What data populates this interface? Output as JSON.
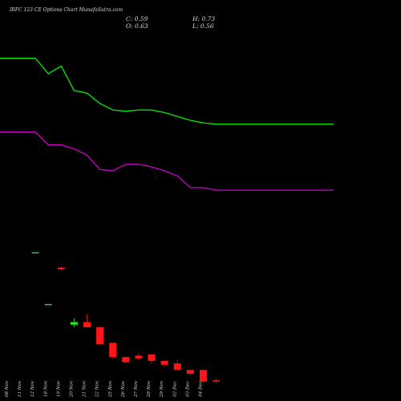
{
  "title": "IRFC 123 CE Options Chart MunafaSutra.com",
  "ohlc": {
    "close_label": "C: 0.59",
    "open_label": "O: 0.63",
    "high_label": "H: 0.73",
    "low_label": "L: 0.56"
  },
  "chart_data": {
    "type": "candlestick",
    "title": "IRFC 123 CE Options Chart MunafaSutra.com",
    "categories": [
      "08 Nov",
      "11 Nov",
      "12 Nov",
      "18 Nov",
      "19 Nov",
      "20 Nov",
      "21 Nov",
      "22 Nov",
      "25 Nov",
      "26 Nov",
      "27 Nov",
      "28 Nov",
      "29 Nov",
      "02 Dec",
      "03 Dec",
      "04 Dec"
    ],
    "tick_labels": [
      "08 Nov",
      "11 Nov",
      "12 Nov",
      "18 Nov",
      "19 Nov",
      "20 Nov",
      "21 Nov",
      "22 Nov",
      "25 Nov",
      "26 Nov",
      "27 Nov",
      "28 Nov",
      "29 Nov",
      "02 Dec",
      "03 Dec",
      "04 Dec"
    ],
    "candles": [
      {
        "date": "08 Nov",
        "open": null,
        "high": null,
        "low": null,
        "close": null
      },
      {
        "date": "11 Nov",
        "open": 1.6,
        "high": 1.6,
        "low": 1.6,
        "close": 1.6,
        "color": "#33cc33"
      },
      {
        "date": "12 Nov",
        "open": 1.2,
        "high": 1.2,
        "low": 1.2,
        "close": 1.2,
        "color": "#33cc33"
      },
      {
        "date": "18 Nov",
        "open": 1.48,
        "high": 1.49,
        "low": 1.46,
        "close": 1.47,
        "color": "#ff3030"
      },
      {
        "date": "19 Nov",
        "open": 1.04,
        "high": 1.09,
        "low": 1.02,
        "close": 1.06,
        "color": "#22ee22"
      },
      {
        "date": "20 Nov",
        "open": 1.06,
        "high": 1.12,
        "low": 1.02,
        "close": 1.02,
        "color": "#ff1515"
      },
      {
        "date": "21 Nov",
        "open": 1.02,
        "high": 1.02,
        "low": 0.89,
        "close": 0.89,
        "color": "#ff1515"
      },
      {
        "date": "22 Nov",
        "open": 0.9,
        "high": 0.9,
        "low": 0.78,
        "close": 0.79,
        "color": "#ff1515"
      },
      {
        "date": "25 Nov",
        "open": 0.79,
        "high": 0.79,
        "low": 0.74,
        "close": 0.75,
        "color": "#ff1515"
      },
      {
        "date": "26 Nov",
        "open": 0.8,
        "high": 0.82,
        "low": 0.77,
        "close": 0.78,
        "color": "#ff1515"
      },
      {
        "date": "27 Nov",
        "open": 0.81,
        "high": 0.81,
        "low": 0.74,
        "close": 0.76,
        "color": "#ff1515"
      },
      {
        "date": "28 Nov",
        "open": 0.76,
        "high": 0.76,
        "low": 0.72,
        "close": 0.73,
        "color": "#ff1515"
      },
      {
        "date": "29 Nov",
        "open": 0.74,
        "high": 0.77,
        "low": 0.69,
        "close": 0.69,
        "color": "#ff1515"
      },
      {
        "date": "02 Dec",
        "open": 0.69,
        "high": 0.69,
        "low": 0.65,
        "close": 0.66,
        "color": "#ff1515"
      },
      {
        "date": "03 Dec",
        "open": 0.69,
        "high": 0.69,
        "low": 0.59,
        "close": 0.6,
        "color": "#ff1515"
      },
      {
        "date": "04 Dec",
        "open": 0.61,
        "high": 0.62,
        "low": 0.59,
        "close": 0.6,
        "color": "#ff1515"
      }
    ],
    "series": [
      {
        "color": "#00ee00",
        "values": [
          3.1,
          3.1,
          2.98,
          3.04,
          2.85,
          2.83,
          2.75,
          2.7,
          2.69,
          2.7,
          2.7,
          2.68,
          2.65,
          2.62,
          2.6,
          2.59
        ]
      },
      {
        "color": "#cc00cc",
        "values": [
          2.53,
          2.53,
          2.43,
          2.43,
          2.4,
          2.35,
          2.24,
          2.23,
          2.28,
          2.28,
          2.26,
          2.23,
          2.19,
          2.1,
          2.1,
          2.08
        ]
      }
    ],
    "ylim": [
      0.45,
      3.55
    ],
    "grid": false,
    "legend": "none"
  }
}
